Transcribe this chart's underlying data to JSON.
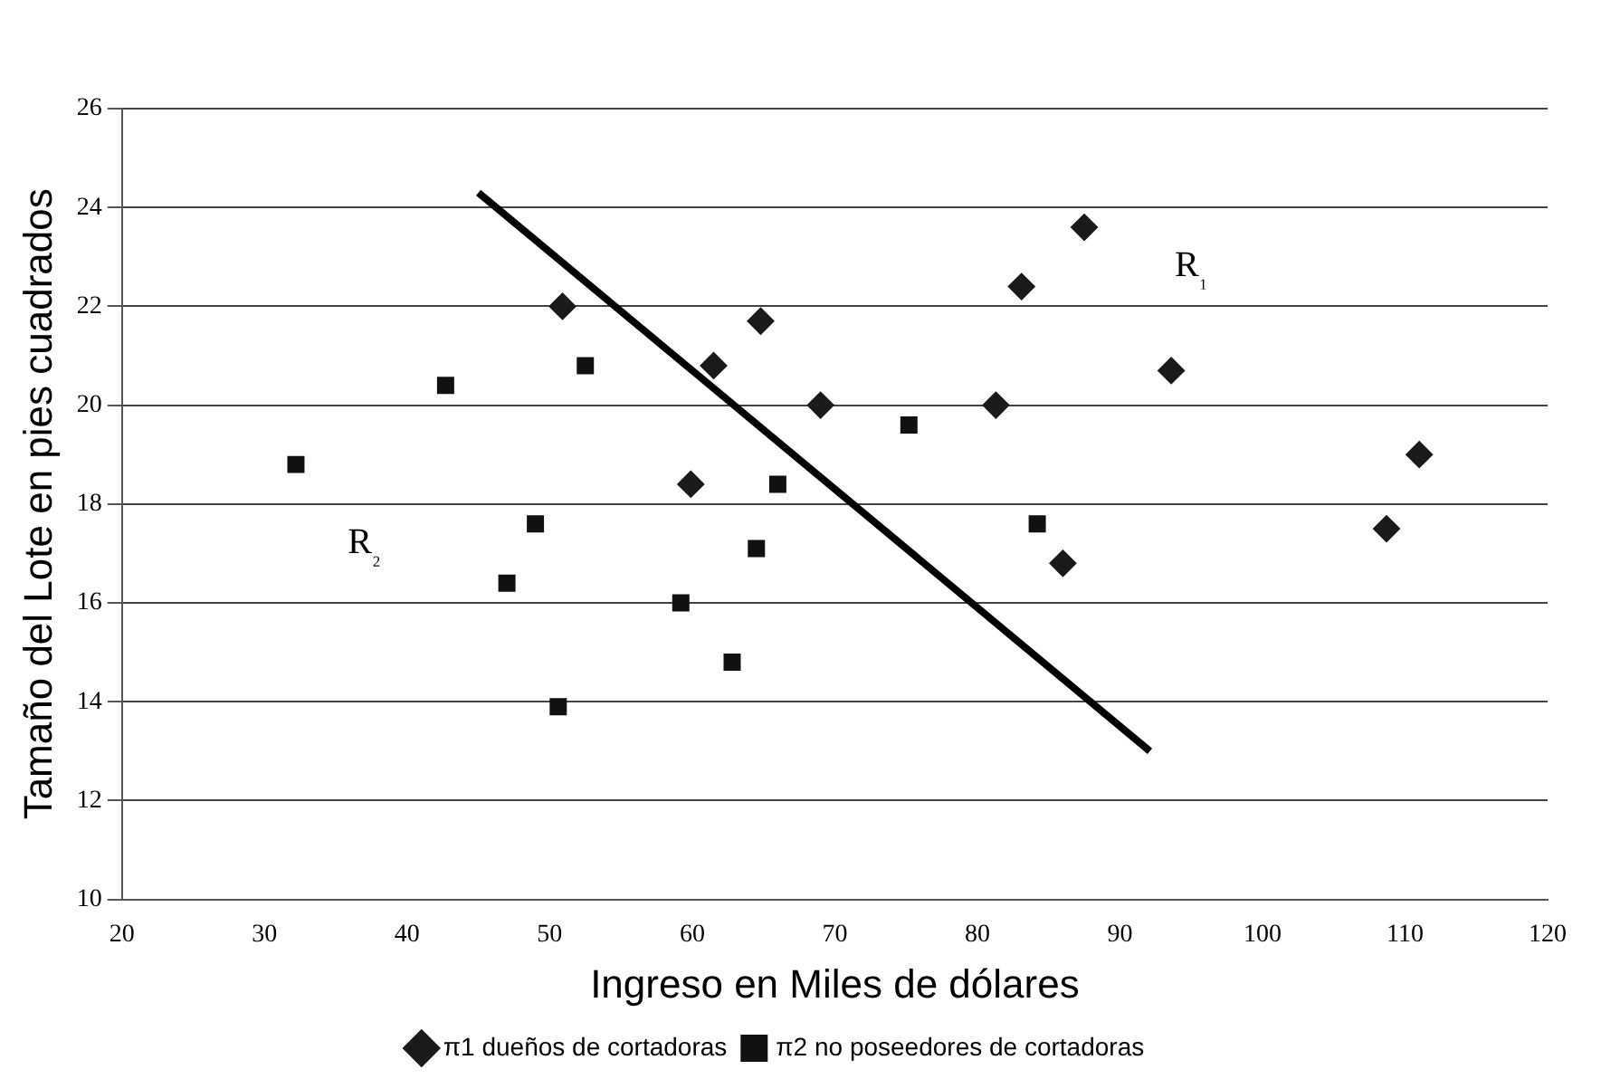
{
  "chart_data": {
    "type": "scatter",
    "xlabel": "Ingreso en Miles de dólares",
    "ylabel": "Tamaño del Lote en pies cuadrados",
    "xlim": [
      20,
      120
    ],
    "xticks": [
      20,
      30,
      40,
      50,
      60,
      70,
      80,
      90,
      100,
      110,
      120
    ],
    "ylim": [
      10,
      26
    ],
    "yticks": [
      10,
      12,
      14,
      16,
      18,
      20,
      22,
      24,
      26
    ],
    "grid": "y",
    "legend": "bottom",
    "series": [
      {
        "name": "π1 dueños de cortadoras",
        "color": "#1a1a1a",
        "marker": "diamond",
        "x": [
          50.9,
          61.5,
          64.8,
          69.0,
          59.9,
          81.3,
          83.1,
          87.5,
          93.6,
          86.0,
          108.7,
          111.0
        ],
        "values": [
          22.0,
          20.8,
          21.7,
          20.0,
          18.4,
          20.0,
          22.4,
          23.6,
          20.7,
          16.8,
          17.5,
          19.0
        ]
      },
      {
        "name": "π2 no poseedores de cortadoras",
        "color": "#111111",
        "marker": "square",
        "x": [
          32.2,
          42.7,
          52.5,
          49.0,
          47.0,
          50.6,
          59.2,
          62.8,
          64.5,
          66.0,
          75.2,
          84.2
        ],
        "values": [
          18.8,
          20.4,
          20.8,
          17.6,
          16.4,
          13.9,
          16.0,
          14.8,
          17.1,
          18.4,
          19.6,
          17.6
        ]
      },
      {
        "type": "line",
        "color": "#000000",
        "marker": "none",
        "x": [
          45.0,
          92.1
        ],
        "values": [
          24.3,
          13.0
        ]
      }
    ],
    "annotations": [
      "R₁",
      "R₂"
    ]
  }
}
